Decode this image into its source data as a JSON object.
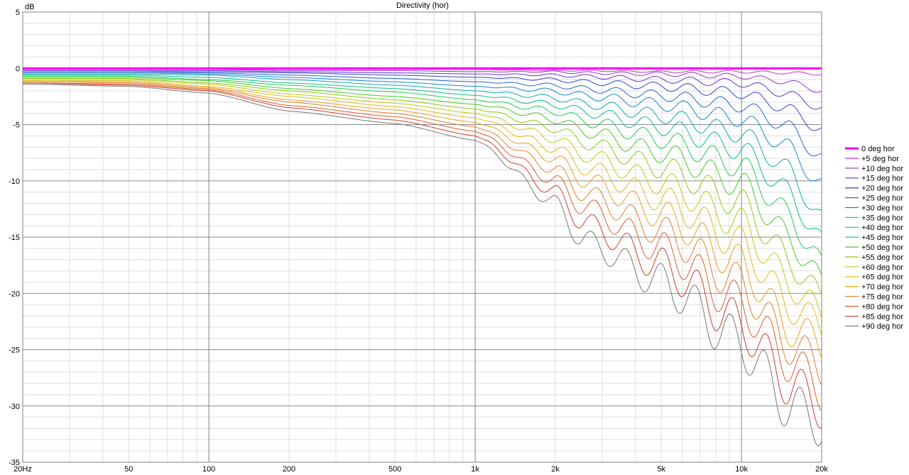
{
  "chart_data": {
    "type": "line",
    "title": "Directivity (hor)",
    "ylabel": "dB",
    "xlabel": "",
    "x_scale": "log",
    "xlim": [
      20,
      20000
    ],
    "ylim": [
      -35,
      5
    ],
    "x_ticks": [
      {
        "value": 20,
        "label": "20Hz"
      },
      {
        "value": 50,
        "label": "50"
      },
      {
        "value": 100,
        "label": "100"
      },
      {
        "value": 200,
        "label": "200"
      },
      {
        "value": 500,
        "label": "500"
      },
      {
        "value": 1000,
        "label": "1k"
      },
      {
        "value": 2000,
        "label": "2k"
      },
      {
        "value": 5000,
        "label": "5k"
      },
      {
        "value": 10000,
        "label": "10k"
      },
      {
        "value": 20000,
        "label": "20k"
      }
    ],
    "y_ticks": [
      {
        "value": 5,
        "label": "5"
      },
      {
        "value": 0,
        "label": "0"
      },
      {
        "value": -5,
        "label": "-5"
      },
      {
        "value": -10,
        "label": "-10"
      },
      {
        "value": -15,
        "label": "-15"
      },
      {
        "value": -20,
        "label": "-20"
      },
      {
        "value": -25,
        "label": "-25"
      },
      {
        "value": -30,
        "label": "-30"
      },
      {
        "value": -35,
        "label": "-35"
      }
    ],
    "grid": true,
    "legend_position": "right",
    "x": [
      20,
      50,
      100,
      200,
      500,
      1000,
      2000,
      2500,
      5000,
      10000,
      15000,
      20000
    ],
    "series": [
      {
        "name": "0 deg hor",
        "color": "#ff00ff",
        "values": [
          0,
          0,
          0,
          0,
          0,
          0,
          0,
          0,
          0,
          0,
          0,
          0
        ]
      },
      {
        "name": "+5 deg hor",
        "color": "#cc33cc",
        "values": [
          -0.1,
          -0.1,
          -0.1,
          -0.1,
          -0.1,
          -0.1,
          -0.2,
          -0.2,
          -0.3,
          -0.3,
          -0.4,
          -0.5
        ]
      },
      {
        "name": "+10 deg hor",
        "color": "#9933cc",
        "values": [
          -0.1,
          -0.1,
          -0.1,
          -0.2,
          -0.2,
          -0.3,
          -0.3,
          -0.4,
          -0.5,
          -0.7,
          -1.2,
          -2.0
        ]
      },
      {
        "name": "+15 deg hor",
        "color": "#6633cc",
        "values": [
          -0.2,
          -0.2,
          -0.2,
          -0.3,
          -0.4,
          -0.5,
          -0.6,
          -0.7,
          -1.0,
          -1.3,
          -2.3,
          -3.5
        ]
      },
      {
        "name": "+20 deg hor",
        "color": "#3344cc",
        "values": [
          -0.3,
          -0.3,
          -0.3,
          -0.4,
          -0.6,
          -0.8,
          -1.0,
          -1.2,
          -1.6,
          -2.2,
          -3.6,
          -5.5
        ]
      },
      {
        "name": "+25 deg hor",
        "color": "#2266cc",
        "values": [
          -0.3,
          -0.3,
          -0.4,
          -0.6,
          -0.9,
          -1.2,
          -1.5,
          -1.8,
          -2.4,
          -3.3,
          -5.2,
          -8.0
        ]
      },
      {
        "name": "+30 deg hor",
        "color": "#1188cc",
        "values": [
          -0.4,
          -0.4,
          -0.5,
          -0.8,
          -1.2,
          -1.6,
          -2.0,
          -2.4,
          -3.2,
          -4.5,
          -7.0,
          -10.5
        ]
      },
      {
        "name": "+35 deg hor",
        "color": "#11aaaa",
        "values": [
          -0.5,
          -0.5,
          -0.6,
          -1.0,
          -1.5,
          -2.0,
          -2.6,
          -3.1,
          -4.2,
          -5.8,
          -9.0,
          -13.5
        ]
      },
      {
        "name": "+40 deg hor",
        "color": "#11bb88",
        "values": [
          -0.6,
          -0.6,
          -0.8,
          -1.3,
          -1.8,
          -2.4,
          -3.2,
          -3.8,
          -5.2,
          -7.2,
          -11.0,
          -15.5
        ]
      },
      {
        "name": "+45 deg hor",
        "color": "#22cc55",
        "values": [
          -0.7,
          -0.7,
          -1.0,
          -1.5,
          -2.1,
          -2.8,
          -3.8,
          -4.6,
          -6.3,
          -8.7,
          -13.0,
          -17.5
        ]
      },
      {
        "name": "+50 deg hor",
        "color": "#44cc22",
        "values": [
          -0.8,
          -0.8,
          -1.1,
          -1.8,
          -2.5,
          -3.2,
          -4.5,
          -5.5,
          -7.5,
          -10.3,
          -15.0,
          -19.0
        ]
      },
      {
        "name": "+55 deg hor",
        "color": "#88cc11",
        "values": [
          -0.9,
          -0.9,
          -1.3,
          -2.0,
          -2.8,
          -3.6,
          -5.3,
          -6.5,
          -8.8,
          -12.0,
          -17.0,
          -20.5
        ]
      },
      {
        "name": "+60 deg hor",
        "color": "#bbcc11",
        "values": [
          -1.0,
          -1.0,
          -1.4,
          -2.3,
          -3.1,
          -4.0,
          -6.2,
          -7.6,
          -10.2,
          -13.8,
          -19.0,
          -22.0
        ]
      },
      {
        "name": "+65 deg hor",
        "color": "#ddbb22",
        "values": [
          -1.1,
          -1.1,
          -1.6,
          -2.5,
          -3.4,
          -4.4,
          -7.1,
          -8.7,
          -11.6,
          -15.6,
          -21.0,
          -23.0
        ]
      },
      {
        "name": "+70 deg hor",
        "color": "#e8a020",
        "values": [
          -1.1,
          -1.2,
          -1.7,
          -2.8,
          -3.7,
          -4.8,
          -8.0,
          -9.8,
          -13.0,
          -17.4,
          -23.0,
          -24.5
        ]
      },
      {
        "name": "+75 deg hor",
        "color": "#e08030",
        "values": [
          -1.2,
          -1.3,
          -1.8,
          -3.0,
          -4.0,
          -5.2,
          -9.0,
          -11.0,
          -14.5,
          -19.2,
          -24.5,
          -26.5
        ]
      },
      {
        "name": "+80 deg hor",
        "color": "#d86030",
        "values": [
          -1.3,
          -1.4,
          -1.9,
          -3.3,
          -4.3,
          -5.6,
          -10.0,
          -12.2,
          -16.0,
          -21.0,
          -26.0,
          -28.5
        ]
      },
      {
        "name": "+85 deg hor",
        "color": "#c84030",
        "values": [
          -1.3,
          -1.5,
          -2.0,
          -3.5,
          -4.6,
          -6.0,
          -11.0,
          -13.6,
          -17.5,
          -22.8,
          -28.0,
          -30.0
        ]
      },
      {
        "name": "+90 deg hor",
        "color": "#777777",
        "values": [
          -1.4,
          -1.6,
          -2.2,
          -3.8,
          -4.9,
          -6.4,
          -12.0,
          -15.2,
          -19.0,
          -24.5,
          -30.0,
          -31.5
        ]
      }
    ]
  }
}
